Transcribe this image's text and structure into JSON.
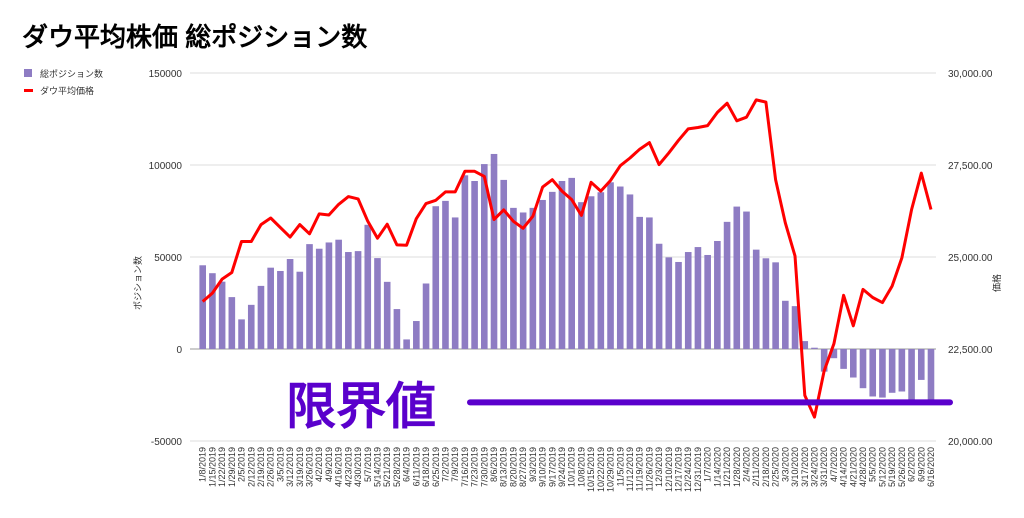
{
  "chart_data": {
    "type": "bar+line",
    "title": "ダウ平均株価 総ポジション数",
    "legend": [
      "総ポジション数",
      "ダウ平均価格"
    ],
    "legend_position": "top-left",
    "ylabel_left": "ポジション数",
    "ylabel_right": "価格",
    "yticks_left": [
      "150000",
      "100000",
      "50000",
      "0",
      "-50000"
    ],
    "yticks_left_values": [
      150000,
      100000,
      50000,
      0,
      -50000
    ],
    "yticks_right": [
      "30,000.00",
      "27,500.00",
      "25,000.00",
      "22,500.00",
      "20,000.00"
    ],
    "yticks_right_values": [
      30000,
      27500,
      25000,
      22500,
      20000
    ],
    "ylim_left": [
      -50000,
      150000
    ],
    "ylim_right": [
      20000,
      30000
    ],
    "grid": true,
    "categories": [
      "1/8/2019",
      "1/15/2019",
      "1/22/2019",
      "1/29/2019",
      "2/5/2019",
      "2/12/2019",
      "2/19/2019",
      "2/26/2019",
      "3/5/2019",
      "3/12/2019",
      "3/19/2019",
      "3/26/2019",
      "4/2/2019",
      "4/9/2019",
      "4/16/2019",
      "4/23/2019",
      "4/30/2019",
      "5/7/2019",
      "5/14/2019",
      "5/21/2019",
      "5/28/2019",
      "6/4/2019",
      "6/11/2019",
      "6/18/2019",
      "6/25/2019",
      "7/2/2019",
      "7/9/2019",
      "7/16/2019",
      "7/23/2019",
      "7/30/2019",
      "8/6/2019",
      "8/13/2019",
      "8/20/2019",
      "8/27/2019",
      "9/3/2019",
      "9/10/2019",
      "9/17/2019",
      "9/24/2019",
      "10/1/2019",
      "10/8/2019",
      "10/15/2019",
      "10/22/2019",
      "10/29/2019",
      "11/5/2019",
      "11/12/2019",
      "11/19/2019",
      "11/26/2019",
      "12/3/2019",
      "12/10/2019",
      "12/17/2019",
      "12/24/2019",
      "12/31/2019",
      "1/7/2020",
      "1/14/2020",
      "1/21/2020",
      "1/28/2020",
      "2/4/2020",
      "2/11/2020",
      "2/18/2020",
      "2/25/2020",
      "3/3/2020",
      "3/10/2020",
      "3/17/2020",
      "3/24/2020",
      "3/31/2020",
      "4/7/2020",
      "4/14/2020",
      "4/21/2020",
      "4/28/2020",
      "5/5/2020",
      "5/12/2020",
      "5/19/2020",
      "5/26/2020",
      "6/2/2020",
      "6/9/2020",
      "6/16/2020"
    ],
    "series": [
      {
        "name": "総ポジション数",
        "type": "bar",
        "axis": "left",
        "color": "#8e7cc3",
        "values": [
          45500,
          41200,
          36600,
          28200,
          16100,
          24000,
          34300,
          44200,
          42400,
          48900,
          42000,
          57000,
          54500,
          57900,
          59400,
          52700,
          53200,
          67500,
          49400,
          36500,
          21700,
          5200,
          15200,
          35600,
          77600,
          80500,
          71500,
          94400,
          91300,
          100500,
          106000,
          91900,
          76700,
          74200,
          76700,
          81000,
          85400,
          91300,
          93000,
          79800,
          83000,
          85200,
          90600,
          88300,
          84000,
          71800,
          71500,
          57200,
          49800,
          47300,
          52700,
          55400,
          51100,
          58700,
          69100,
          77400,
          74700,
          54000,
          49300,
          47100,
          26200,
          23300,
          4300,
          700,
          -12300,
          -5000,
          -10800,
          -15500,
          -21300,
          -25800,
          -26400,
          -23800,
          -23100,
          -30000,
          -16800,
          -30000
        ]
      },
      {
        "name": "ダウ平均価格",
        "type": "line",
        "axis": "right",
        "color": "#ff0000",
        "values": [
          23790,
          24020,
          24400,
          24580,
          25420,
          25420,
          25880,
          26060,
          25800,
          25540,
          25880,
          25630,
          26170,
          26140,
          26430,
          26640,
          26580,
          25970,
          25510,
          25890,
          25330,
          25320,
          26040,
          26450,
          26540,
          26770,
          26770,
          27330,
          27330,
          27190,
          26020,
          26280,
          25970,
          25780,
          26110,
          26900,
          27100,
          26790,
          26560,
          26130,
          27030,
          26790,
          27080,
          27480,
          27690,
          27930,
          28110,
          27510,
          27830,
          28170,
          28480,
          28520,
          28570,
          28930,
          29180,
          28700,
          28800,
          29270,
          29210,
          27100,
          25930,
          25030,
          21240,
          20650,
          21910,
          22640,
          23960,
          23130,
          24120,
          23900,
          23760,
          24210,
          24980,
          26290,
          27280,
          26290
        ]
      }
    ],
    "annotation": {
      "text": "限界値",
      "value": -29000,
      "color": "#5a00cc"
    }
  }
}
